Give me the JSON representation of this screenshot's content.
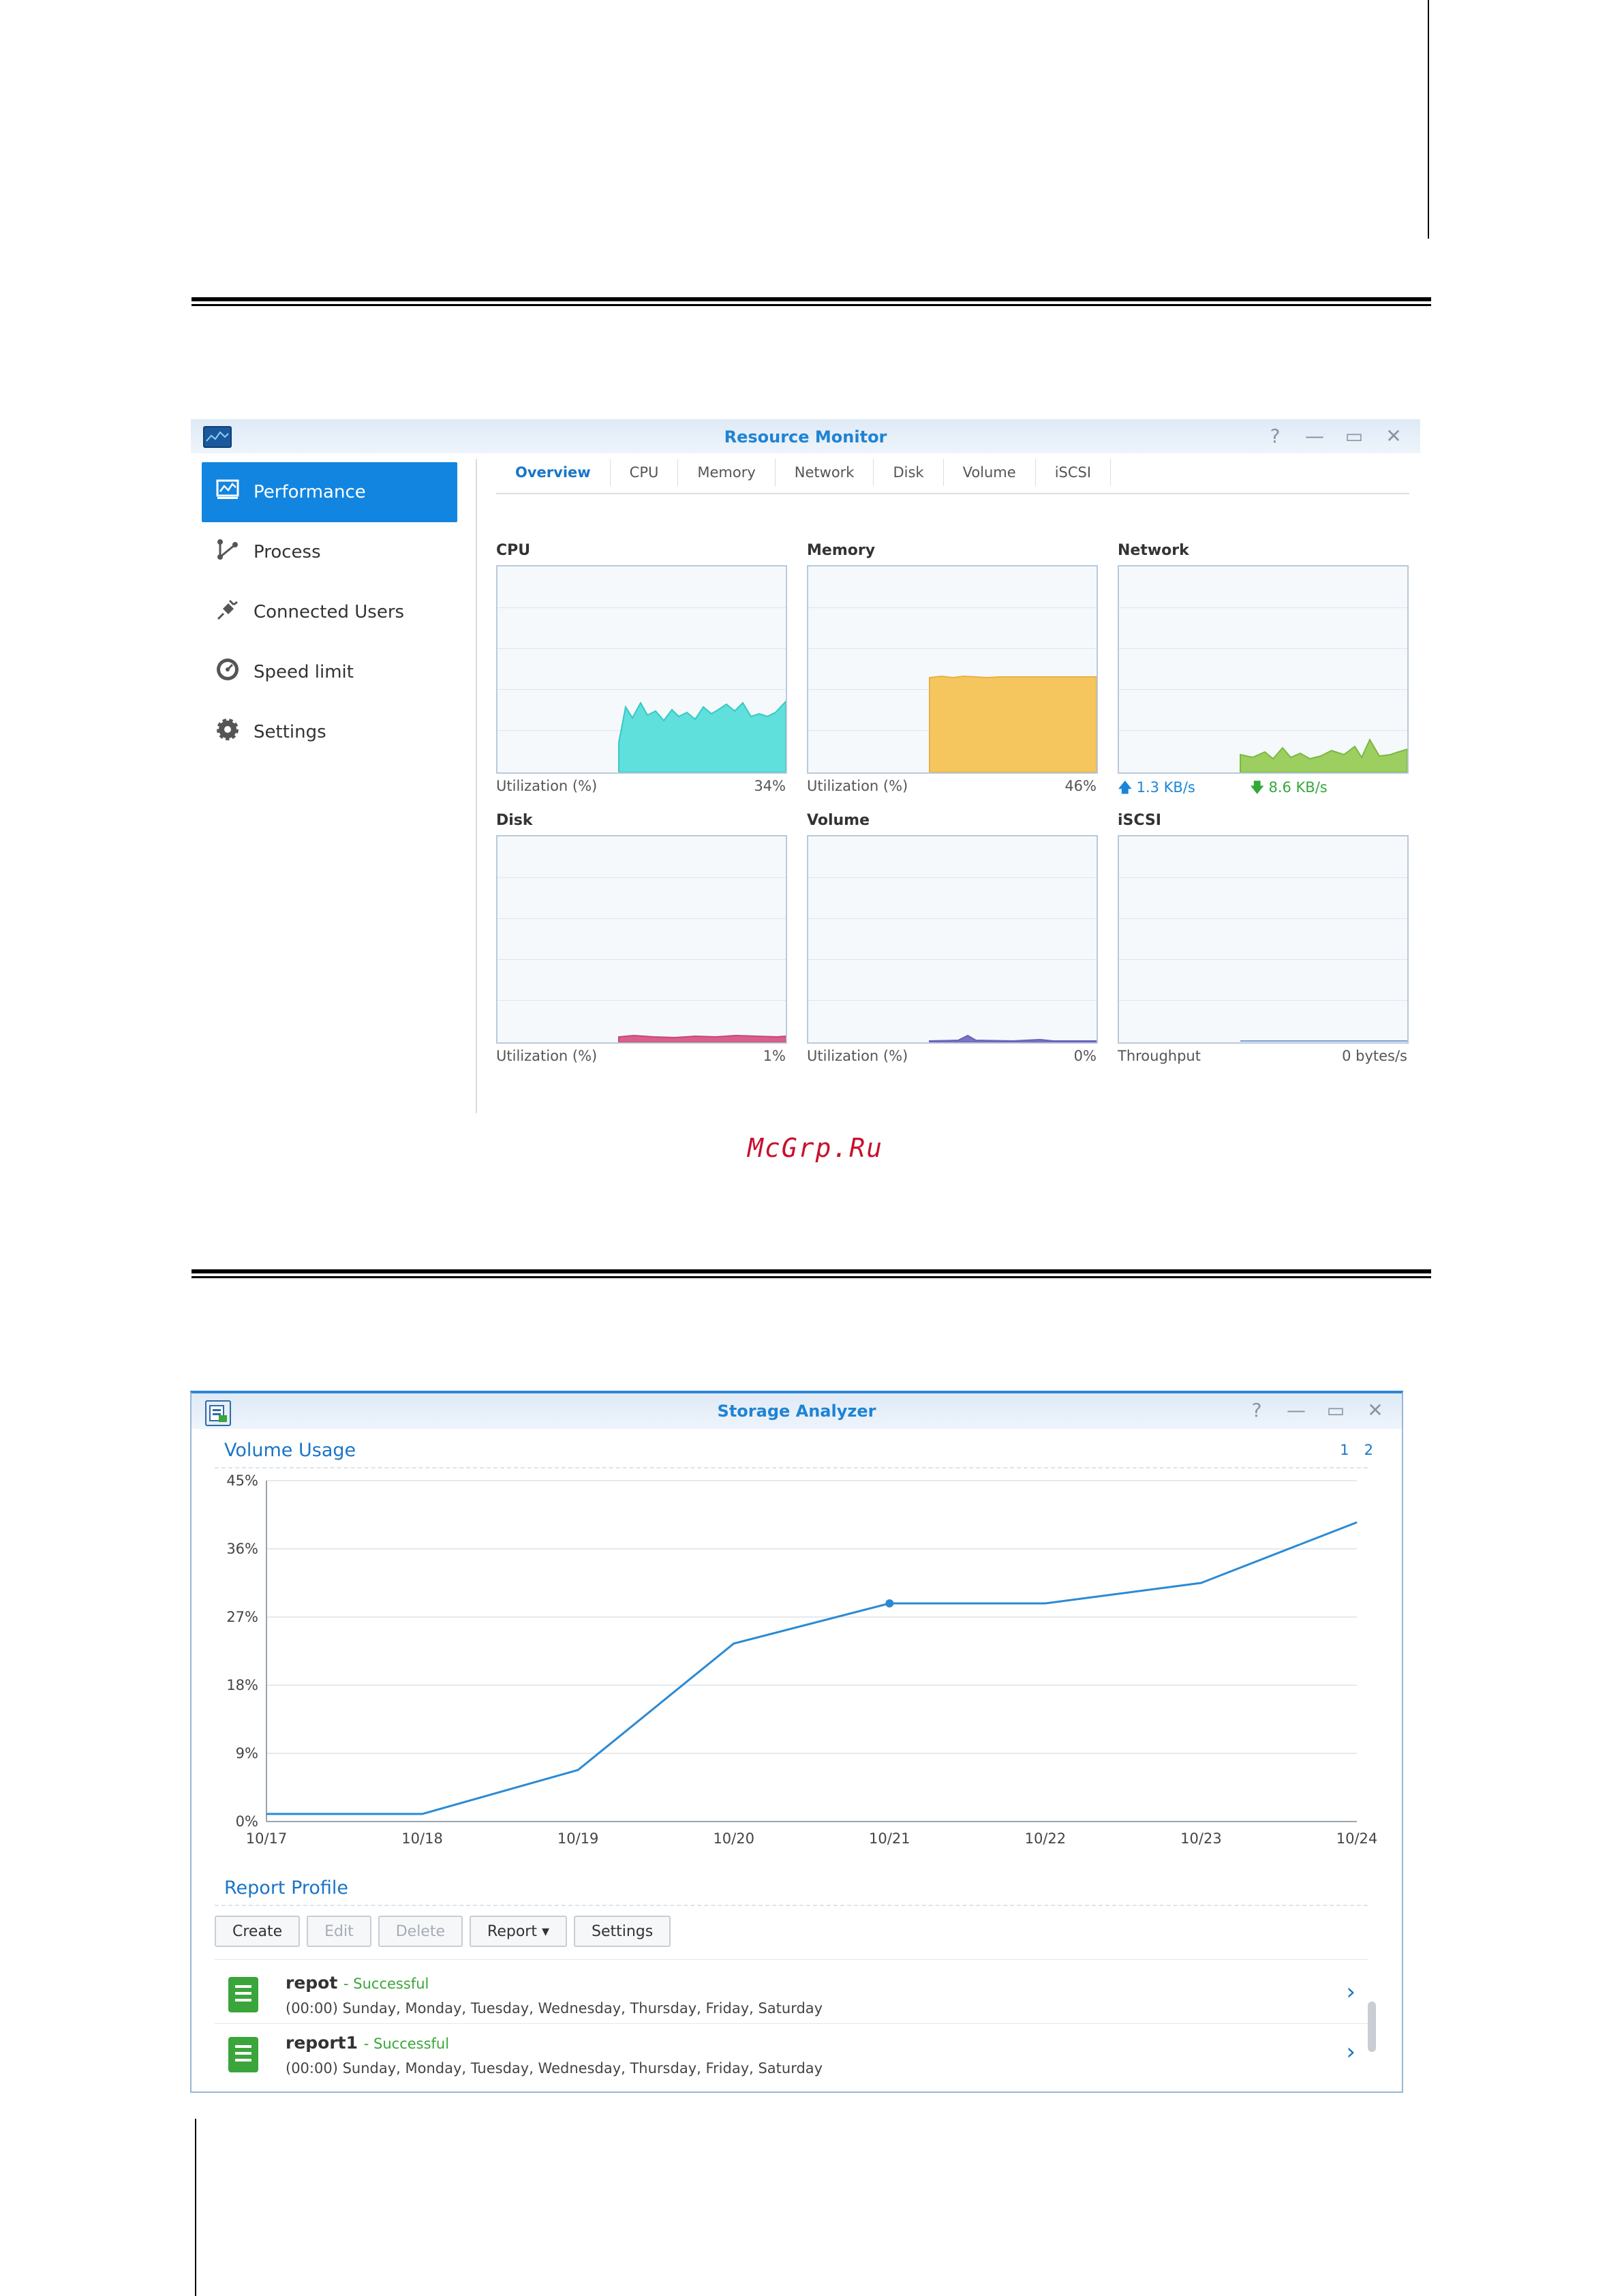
{
  "resource_monitor": {
    "title": "Resource Monitor",
    "window_buttons": [
      "?",
      "—",
      "▭",
      "✕"
    ],
    "sidebar": [
      {
        "label": "Performance",
        "icon": "performance-icon",
        "active": true
      },
      {
        "label": "Process",
        "icon": "process-icon",
        "active": false
      },
      {
        "label": "Connected Users",
        "icon": "plug-icon",
        "active": false
      },
      {
        "label": "Speed limit",
        "icon": "speedometer-icon",
        "active": false
      },
      {
        "label": "Settings",
        "icon": "gear-icon",
        "active": false
      }
    ],
    "tabs": [
      "Overview",
      "CPU",
      "Memory",
      "Network",
      "Disk",
      "Volume",
      "iSCSI"
    ],
    "active_tab": "Overview",
    "panels": {
      "cpu": {
        "title": "CPU",
        "foot_label": "Utilization (%)",
        "foot_value": "34%",
        "color": "#5fe0dc"
      },
      "memory": {
        "title": "Memory",
        "foot_label": "Utilization (%)",
        "foot_value": "46%",
        "color": "#f6c65e"
      },
      "network": {
        "title": "Network",
        "upload": "1.3 KB/s",
        "download": "8.6 KB/s",
        "color": "#9ccf5f"
      },
      "disk": {
        "title": "Disk",
        "foot_label": "Utilization (%)",
        "foot_value": "1%",
        "color": "#d9608a"
      },
      "volume": {
        "title": "Volume",
        "foot_label": "Utilization (%)",
        "foot_value": "0%",
        "color": "#7b74c4"
      },
      "iscsi": {
        "title": "iSCSI",
        "foot_label": "Throughput",
        "foot_value": "0 bytes/s",
        "color": "#7b9ccf"
      }
    }
  },
  "watermark": "McGrp.Ru",
  "storage_analyzer": {
    "title": "Storage Analyzer",
    "window_buttons": [
      "?",
      "—",
      "▭",
      "✕"
    ],
    "volume_usage_heading": "Volume Usage",
    "pages": [
      "1",
      "2"
    ],
    "report_profile_heading": "Report Profile",
    "toolbar": {
      "create": "Create",
      "edit": "Edit",
      "delete": "Delete",
      "report": "Report ▾",
      "settings": "Settings"
    },
    "reports": [
      {
        "name": "repot",
        "status": "- Successful",
        "schedule": "(00:00) Sunday, Monday, Tuesday, Wednesday, Thursday, Friday, Saturday"
      },
      {
        "name": "report1",
        "status": "- Successful",
        "schedule": "(00:00) Sunday, Monday, Tuesday, Wednesday, Thursday, Friday, Saturday"
      }
    ]
  },
  "chart_data": {
    "type": "line",
    "title": "Volume Usage",
    "categories": [
      "10/17",
      "10/18",
      "10/19",
      "10/20",
      "10/21",
      "10/22",
      "10/23",
      "10/24"
    ],
    "values": [
      1,
      1,
      6.8,
      23.5,
      28.8,
      28.8,
      31.5,
      39.5
    ],
    "yticks": [
      "0%",
      "9%",
      "18%",
      "27%",
      "36%",
      "45%"
    ],
    "ylim": [
      0,
      45
    ],
    "grid": true,
    "color": "#2a8ad4",
    "marker_index": 4
  }
}
